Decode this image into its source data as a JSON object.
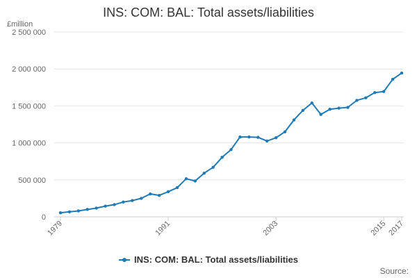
{
  "chart_data": {
    "type": "line",
    "title": "INS: COM: BAL: Total assets/liabilities",
    "ylabel": "£million",
    "ylim": [
      0,
      2500000
    ],
    "yticks": [
      0,
      500000,
      1000000,
      1500000,
      2000000,
      2500000
    ],
    "ytick_labels": [
      "0",
      "500 000",
      "1 000 000",
      "1 500 000",
      "2 000 000",
      "2 500 000"
    ],
    "xlim": [
      1979,
      2017
    ],
    "xticks": [
      1979,
      1991,
      2003,
      2015,
      2017
    ],
    "xtick_labels": [
      "1979",
      "1991",
      "2003",
      "2015",
      "2017"
    ],
    "grid": true,
    "legend_position": "bottom",
    "series": [
      {
        "name": "INS: COM: BAL: Total assets/liabilities",
        "color": "#1f7bb6",
        "x": [
          1979,
          1980,
          1981,
          1982,
          1983,
          1984,
          1985,
          1986,
          1987,
          1988,
          1989,
          1990,
          1991,
          1992,
          1993,
          1994,
          1995,
          1996,
          1997,
          1998,
          1999,
          2000,
          2001,
          2002,
          2003,
          2004,
          2005,
          2006,
          2007,
          2008,
          2009,
          2010,
          2011,
          2012,
          2013,
          2014,
          2015,
          2016,
          2017
        ],
        "values": [
          55000,
          68000,
          80000,
          100000,
          118000,
          145000,
          165000,
          200000,
          220000,
          250000,
          310000,
          290000,
          340000,
          395000,
          515000,
          485000,
          590000,
          670000,
          805000,
          910000,
          1080000,
          1080000,
          1075000,
          1025000,
          1070000,
          1150000,
          1310000,
          1440000,
          1540000,
          1385000,
          1455000,
          1470000,
          1480000,
          1575000,
          1610000,
          1680000,
          1695000,
          1860000,
          1945000
        ]
      }
    ]
  },
  "legend": {
    "label": "INS: COM: BAL: Total assets/liabilities"
  },
  "source_label": "Source:"
}
